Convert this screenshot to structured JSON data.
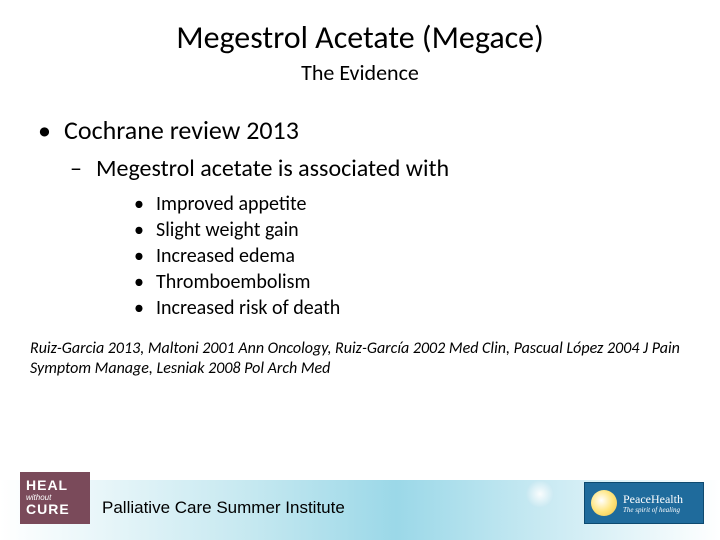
{
  "title": "Megestrol Acetate (Megace)",
  "subtitle": "The Evidence",
  "bullets": {
    "l1": "Cochrane review 2013",
    "l2": "Megestrol acetate is associated with",
    "l3": [
      "Improved appetite",
      "Slight weight gain",
      "Increased edema",
      "Thromboembolism",
      "Increased risk of death"
    ]
  },
  "citation": "Ruiz-Garcia 2013, Maltoni 2001 Ann Oncology, Ruiz-García 2002 Med Clin, Pascual López 2004 J Pain Symptom Manage, Lesniak 2008 Pol Arch Med",
  "footer": {
    "heal": {
      "line1": "HEAL",
      "line2": "without",
      "line3": "CURE"
    },
    "institute": "Palliative Care Summer Institute",
    "peace": {
      "name": "PeaceHealth",
      "tag": "The spirit of healing"
    }
  },
  "colors": {
    "heal_bg": "#7a4a5a",
    "peace_bg": "#1f6b9c",
    "footer_grad_mid": "#9bd8e8"
  }
}
